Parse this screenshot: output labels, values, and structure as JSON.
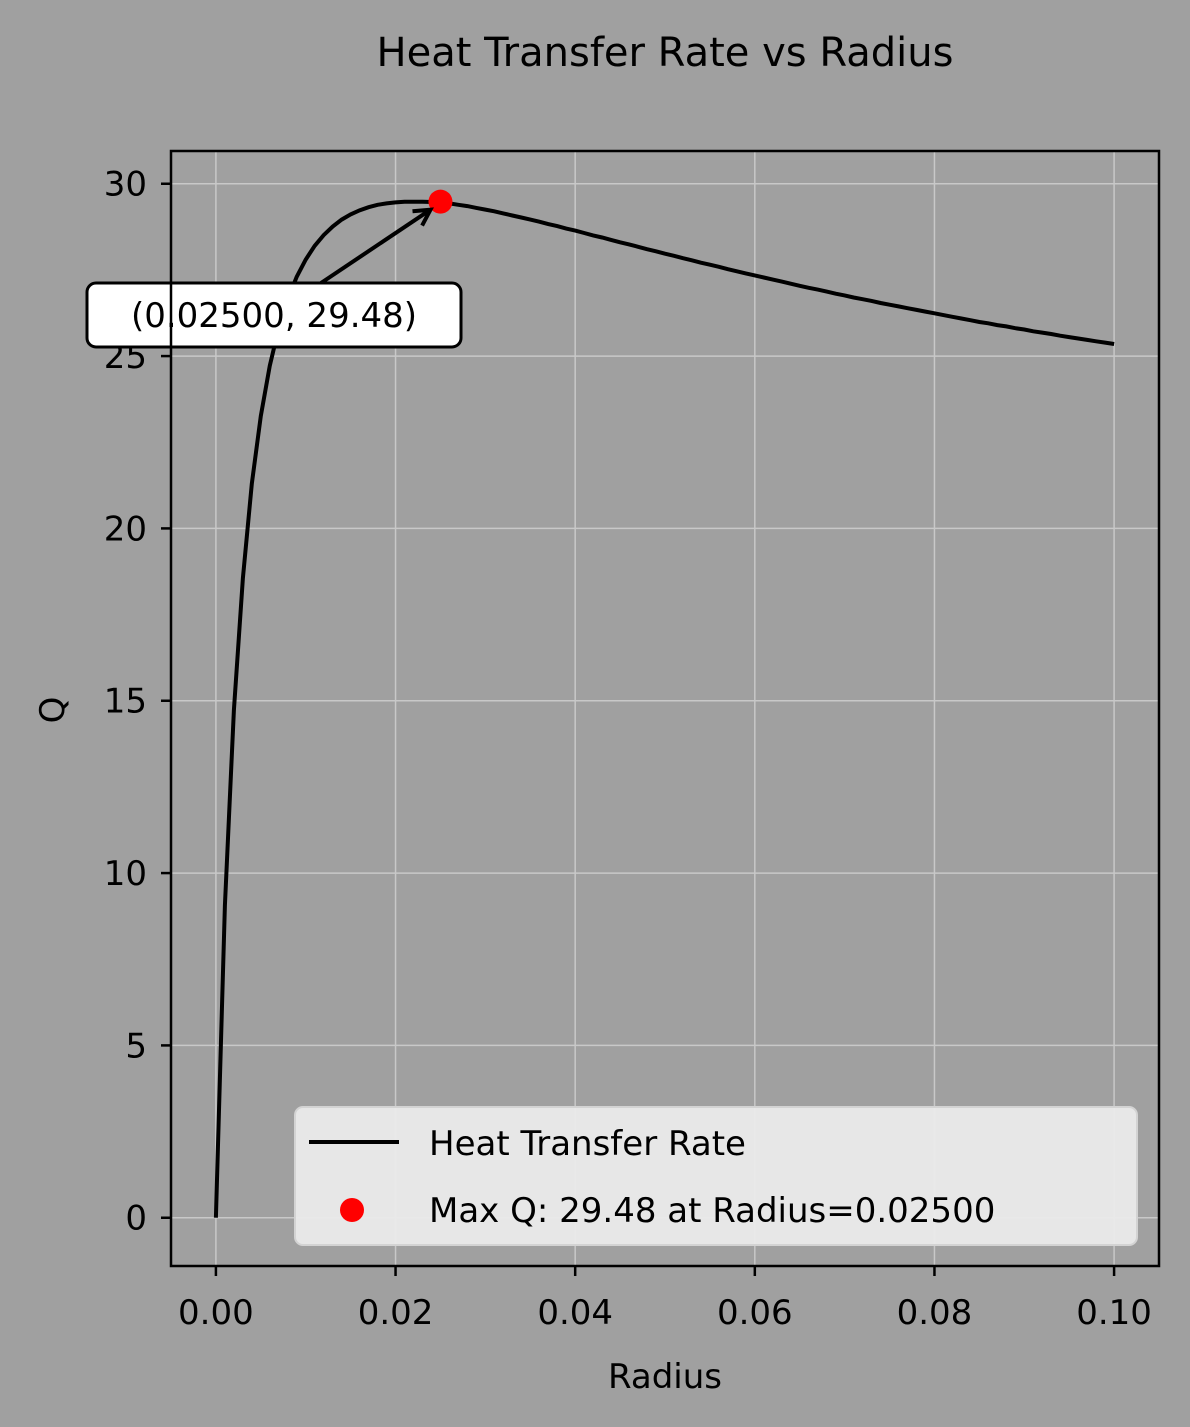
{
  "chart_data": {
    "type": "line",
    "title": "Heat Transfer Rate vs Radius",
    "xlabel": "Radius",
    "ylabel": "Q",
    "xlim": [
      -0.005,
      0.105
    ],
    "ylim": [
      -1.4,
      30.95
    ],
    "xticks": [
      0.0,
      0.02,
      0.04,
      0.06,
      0.08,
      0.1
    ],
    "xtick_labels": [
      "0.00",
      "0.02",
      "0.04",
      "0.06",
      "0.08",
      "0.10"
    ],
    "yticks": [
      0,
      5,
      10,
      15,
      20,
      25,
      30
    ],
    "ytick_labels": [
      "0",
      "5",
      "10",
      "15",
      "20",
      "25",
      "30"
    ],
    "grid": true,
    "background_color": "#a0a0a0",
    "series": [
      {
        "name": "Heat Transfer Rate",
        "color": "#000000",
        "x": [
          0.0,
          0.001,
          0.002,
          0.003,
          0.004,
          0.005,
          0.006,
          0.007,
          0.008,
          0.009,
          0.01,
          0.011,
          0.012,
          0.013,
          0.014,
          0.015,
          0.016,
          0.017,
          0.018,
          0.019,
          0.02,
          0.021,
          0.022,
          0.023,
          0.024,
          0.025,
          0.026,
          0.027,
          0.028,
          0.029,
          0.03,
          0.031,
          0.032,
          0.033,
          0.034,
          0.035,
          0.036,
          0.037,
          0.038,
          0.039,
          0.04,
          0.041,
          0.042,
          0.043,
          0.044,
          0.045,
          0.046,
          0.047,
          0.048,
          0.049,
          0.05,
          0.051,
          0.052,
          0.053,
          0.054,
          0.055,
          0.056,
          0.057,
          0.058,
          0.059,
          0.06,
          0.061,
          0.062,
          0.063,
          0.064,
          0.065,
          0.066,
          0.067,
          0.068,
          0.069,
          0.07,
          0.071,
          0.072,
          0.073,
          0.074,
          0.075,
          0.076,
          0.077,
          0.078,
          0.079,
          0.08,
          0.081,
          0.082,
          0.083,
          0.084,
          0.085,
          0.086,
          0.087,
          0.088,
          0.089,
          0.09,
          0.091,
          0.092,
          0.093,
          0.094,
          0.095,
          0.096,
          0.097,
          0.098,
          0.099,
          0.1
        ],
        "y": [
          0.0,
          9.06,
          14.73,
          18.56,
          21.29,
          23.26,
          24.72,
          25.82,
          26.65,
          27.3,
          27.8,
          28.2,
          28.51,
          28.76,
          28.96,
          29.11,
          29.23,
          29.32,
          29.39,
          29.43,
          29.46,
          29.48,
          29.48,
          29.48,
          29.47,
          29.48,
          29.43,
          29.39,
          29.35,
          29.3,
          29.25,
          29.2,
          29.14,
          29.08,
          29.02,
          28.96,
          28.9,
          28.83,
          28.77,
          28.7,
          28.64,
          28.57,
          28.5,
          28.44,
          28.37,
          28.3,
          28.24,
          28.17,
          28.1,
          28.04,
          27.97,
          27.91,
          27.84,
          27.78,
          27.71,
          27.65,
          27.59,
          27.52,
          27.46,
          27.4,
          27.34,
          27.28,
          27.22,
          27.16,
          27.1,
          27.04,
          26.98,
          26.93,
          26.87,
          26.81,
          26.76,
          26.7,
          26.65,
          26.6,
          26.54,
          26.49,
          26.44,
          26.39,
          26.34,
          26.29,
          26.24,
          26.19,
          26.14,
          26.09,
          26.04,
          25.99,
          25.95,
          25.9,
          25.86,
          25.81,
          25.77,
          25.72,
          25.68,
          25.64,
          25.59,
          25.55,
          25.51,
          25.47,
          25.43,
          25.39,
          25.35
        ]
      },
      {
        "name": "Max Q: 29.48 at Radius=0.02500",
        "type": "scatter",
        "color": "#ff0000",
        "x": [
          0.025
        ],
        "y": [
          29.48
        ]
      }
    ],
    "annotation": {
      "text": "(0.02500, 29.48)",
      "xy": [
        0.025,
        29.48
      ]
    },
    "legend": {
      "placement": "lower right",
      "entries": [
        "Heat Transfer Rate",
        "Max Q: 29.48 at Radius=0.02500"
      ]
    }
  }
}
